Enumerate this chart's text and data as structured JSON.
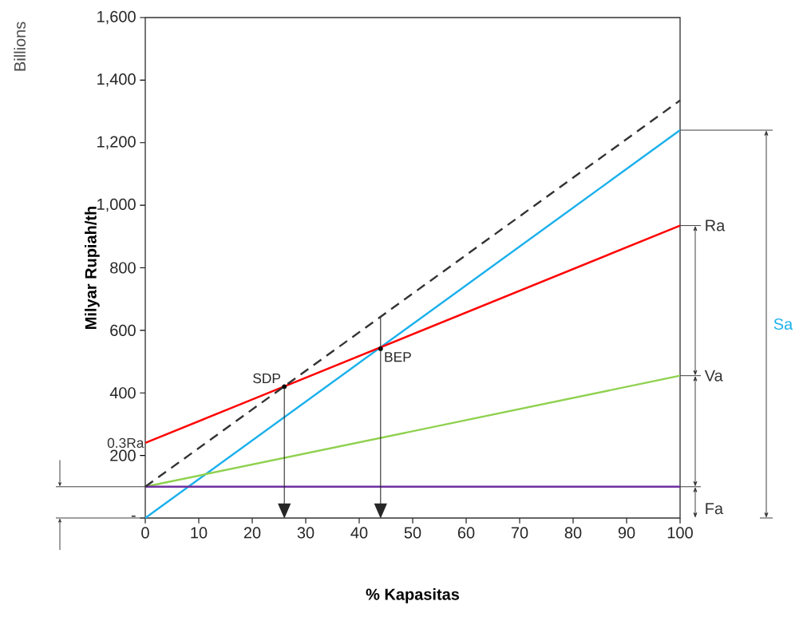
{
  "chart_data": {
    "type": "line",
    "xlabel": "% Kapasitas",
    "ylabel": "Milyar Rupiah/th",
    "x": [
      0,
      100
    ],
    "series": [
      {
        "name": "Sa",
        "color": "#1ab0ec",
        "values": [
          0,
          1240
        ]
      },
      {
        "name": "Ra",
        "color": "#ff0000",
        "values": [
          240,
          935
        ]
      },
      {
        "name": "Va",
        "color": "#8fd14f",
        "values": [
          100,
          455
        ]
      },
      {
        "name": "Fa",
        "color": "#7030a0",
        "values": [
          100,
          100
        ]
      },
      {
        "color": "#333333",
        "values": [
          100,
          1335
        ],
        "line_style": "dashed"
      }
    ],
    "xlim": [
      0,
      100
    ],
    "xticks": [
      0,
      10,
      20,
      30,
      40,
      50,
      60,
      70,
      80,
      90,
      100
    ],
    "ylim": [
      0,
      1600
    ],
    "yticks": [
      {
        "value": 0,
        "label": "-"
      },
      {
        "value": 200,
        "label": "200"
      },
      {
        "value": 400,
        "label": "400"
      },
      {
        "value": 600,
        "label": "600"
      },
      {
        "value": 800,
        "label": "800"
      },
      {
        "value": 1000,
        "label": "1,000"
      },
      {
        "value": 1200,
        "label": "1,200"
      },
      {
        "value": 1400,
        "label": "1,400"
      },
      {
        "value": 1600,
        "label": "1,600"
      }
    ],
    "grid": false,
    "marker": "none",
    "line_style": "solid",
    "annotations": [
      "Billions",
      {
        "text": "0.3Ra",
        "x": 0,
        "y": 240
      },
      {
        "text": "SDP",
        "x": 26,
        "y": 420
      },
      {
        "text": "BEP",
        "x": 44,
        "y": 541
      }
    ]
  }
}
